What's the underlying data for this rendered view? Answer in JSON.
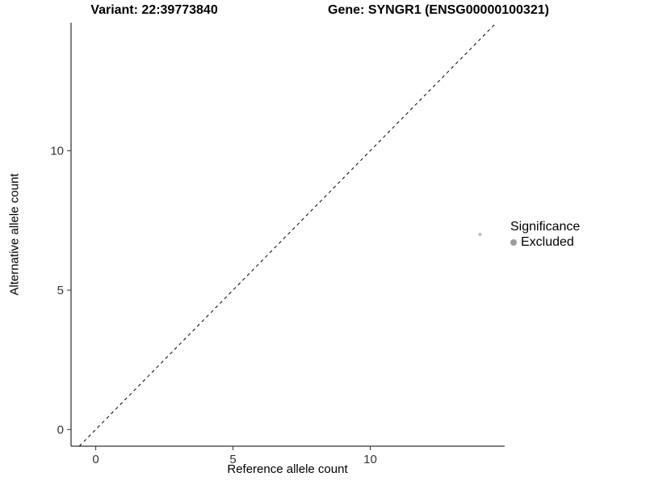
{
  "chart_data": {
    "type": "scatter",
    "title_left": "Variant: 22:39773840",
    "title_right": "Gene: SYNGR1 (ENSG00000100321)",
    "xlabel": "Reference allele count",
    "ylabel": "Alternative allele count",
    "xlim": [
      -0.9,
      14.9
    ],
    "ylim": [
      -0.6,
      14.6
    ],
    "xticks": [
      0,
      5,
      10
    ],
    "yticks": [
      0,
      5,
      10
    ],
    "grid": false,
    "reference_line": {
      "type": "identity",
      "style": "dashed",
      "color": "#000000"
    },
    "points": [
      {
        "x": 14,
        "y": 7,
        "significance": "Excluded"
      }
    ],
    "point_color": "#bcbcbc",
    "point_radius_px": 2,
    "axis_color": "#000000",
    "tick_label_color": "#333333",
    "legend": {
      "title": "Significance",
      "position": "right",
      "entries": [
        {
          "label": "Excluded",
          "color": "#9a9a9a"
        }
      ]
    }
  }
}
